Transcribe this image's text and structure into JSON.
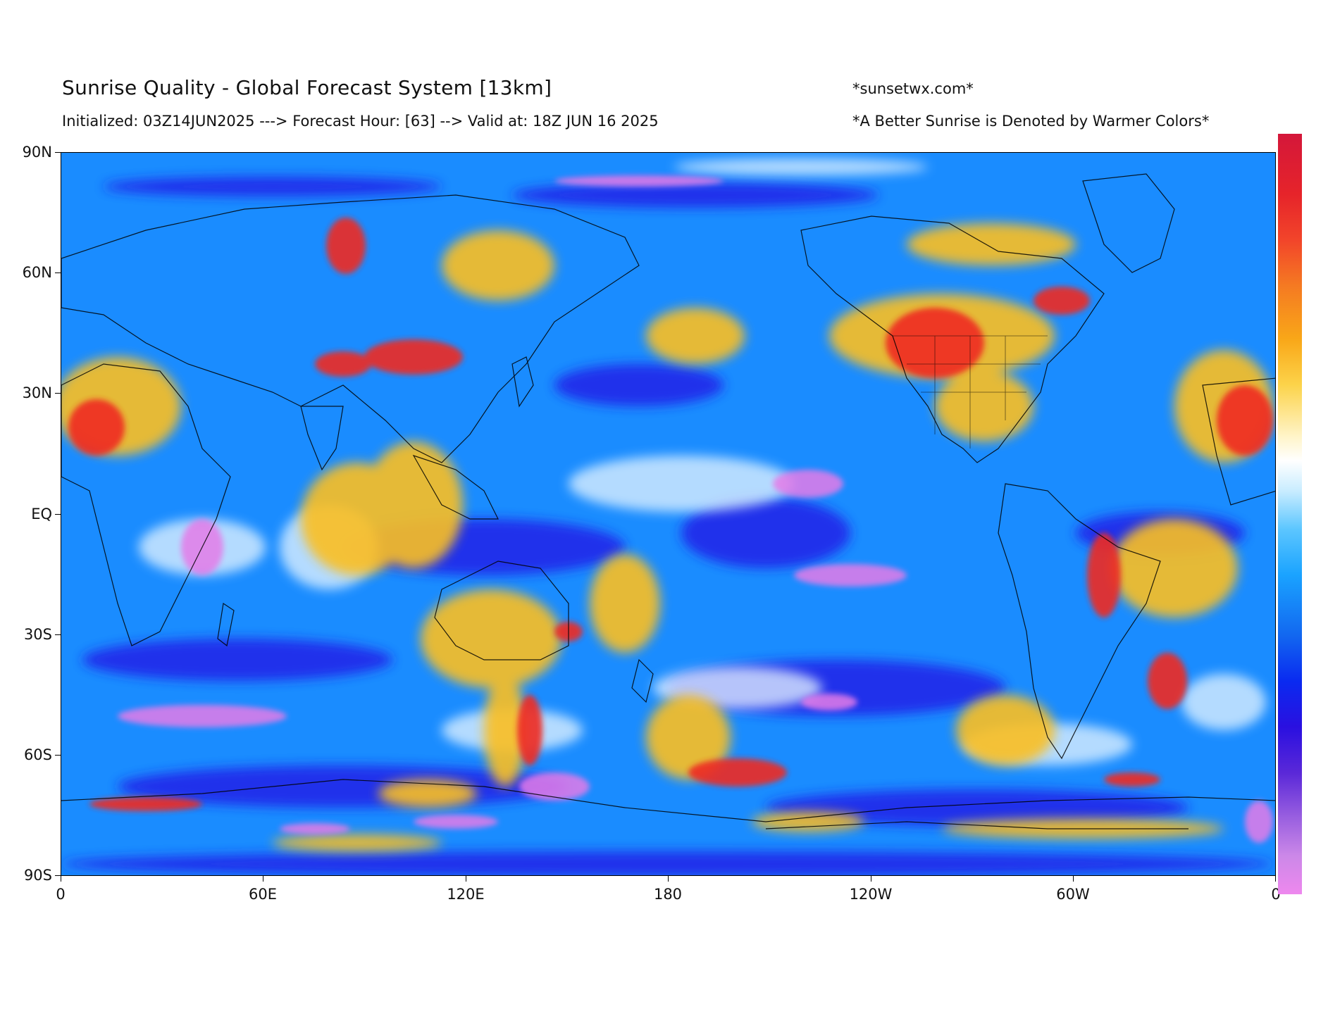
{
  "header": {
    "title": "Sunrise Quality - Global Forecast System [13km]",
    "subtitle": "Initialized: 03Z14JUN2025 ---> Forecast Hour: [63] --> Valid at: 18Z JUN 16 2025",
    "site": "*sunsetwx.com*",
    "note": "*A Better Sunrise is Denoted by Warmer Colors*"
  },
  "axes": {
    "lat_labels": [
      "90N",
      "60N",
      "30N",
      "EQ",
      "30S",
      "60S",
      "90S"
    ],
    "lon_labels": [
      "0",
      "60E",
      "120E",
      "180",
      "120W",
      "60W",
      "0"
    ]
  },
  "colorbar": {
    "colors": [
      "#d4173a",
      "#f57a22",
      "#fcd34a",
      "#ffffff",
      "#1aa3ff",
      "#0a2af0",
      "#ee88ee"
    ]
  },
  "map": {
    "base_color": "#1a8cff",
    "warm_color": "#fbbf24",
    "hot_color": "#ef2a22",
    "cold_color": "#2020e8",
    "violet_color": "#e47ce8"
  }
}
